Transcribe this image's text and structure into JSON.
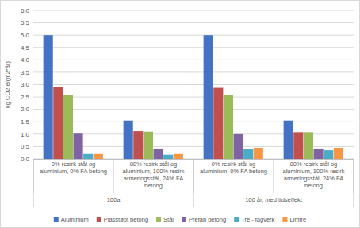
{
  "chart_data": {
    "type": "bar",
    "y_label": "kg CO2 e/(m2*år)",
    "categories": [
      "0% resirk stål og aluminium, 0% FA betong",
      "80% resirk stål og aluminium, 100% resirk armeringsstål, 24% FA betong",
      "0% resirk stål og aluminium, 0% FA betong",
      "80% resirk stål og aluminium, 100% resirk armeringsstål, 24% FA betong"
    ],
    "category_groups": [
      {
        "label": "100a",
        "span": 2
      },
      {
        "label": "100 år, med tidseffekt",
        "span": 2
      }
    ],
    "series": [
      {
        "name": "Aluminium",
        "color": "#4472c4",
        "values": [
          5.0,
          1.55,
          5.0,
          1.55
        ]
      },
      {
        "name": "Plasstøpt betong",
        "color": "#c0504d",
        "values": [
          2.9,
          1.12,
          2.87,
          1.08
        ]
      },
      {
        "name": "Stål",
        "color": "#9bbb59",
        "values": [
          2.6,
          1.1,
          2.6,
          1.08
        ]
      },
      {
        "name": "Prefab betong",
        "color": "#8064a2",
        "values": [
          1.02,
          0.42,
          1.0,
          0.42
        ]
      },
      {
        "name": "Tre - fagverk",
        "color": "#4bacc6",
        "values": [
          0.2,
          0.17,
          0.4,
          0.35
        ]
      },
      {
        "name": "Limtre",
        "color": "#f79646",
        "values": [
          0.2,
          0.2,
          0.45,
          0.45
        ]
      }
    ],
    "ylim": [
      0,
      6
    ],
    "yticks": [
      {
        "value": 0,
        "label": "0,0"
      },
      {
        "value": 0.5,
        "label": "0,5"
      },
      {
        "value": 1,
        "label": "1,0"
      },
      {
        "value": 1.5,
        "label": "1,5"
      },
      {
        "value": 2,
        "label": "2,0"
      },
      {
        "value": 2.5,
        "label": "2,5"
      },
      {
        "value": 3,
        "label": "3,0"
      },
      {
        "value": 3.5,
        "label": "3,5"
      },
      {
        "value": 4,
        "label": "4,0"
      },
      {
        "value": 4.5,
        "label": "4,5"
      },
      {
        "value": 5,
        "label": "5,0"
      },
      {
        "value": 5.5,
        "label": "5,5"
      },
      {
        "value": 6,
        "label": "6,0"
      }
    ],
    "grid": true,
    "legend": "bottom"
  }
}
